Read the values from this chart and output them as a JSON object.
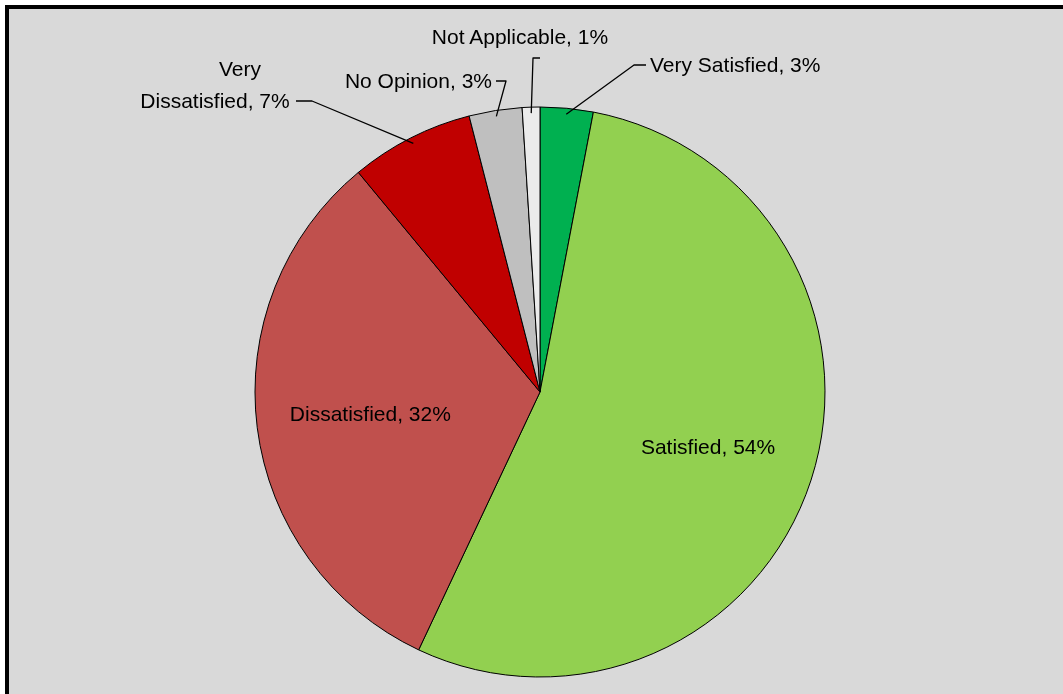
{
  "chart_data": {
    "type": "pie",
    "categories": [
      "Very Satisfied",
      "Satisfied",
      "Dissatisfied",
      "Very Dissatisfied",
      "No Opinion",
      "Not Applicable"
    ],
    "values": [
      3,
      54,
      32,
      7,
      3,
      1
    ],
    "colors": [
      "#00b050",
      "#92d050",
      "#c0504d",
      "#c00000",
      "#bfbfbf",
      "#ebebeb"
    ],
    "value_labels": [
      "3%",
      "54%",
      "32%",
      "7%",
      "3%",
      "1%"
    ]
  }
}
